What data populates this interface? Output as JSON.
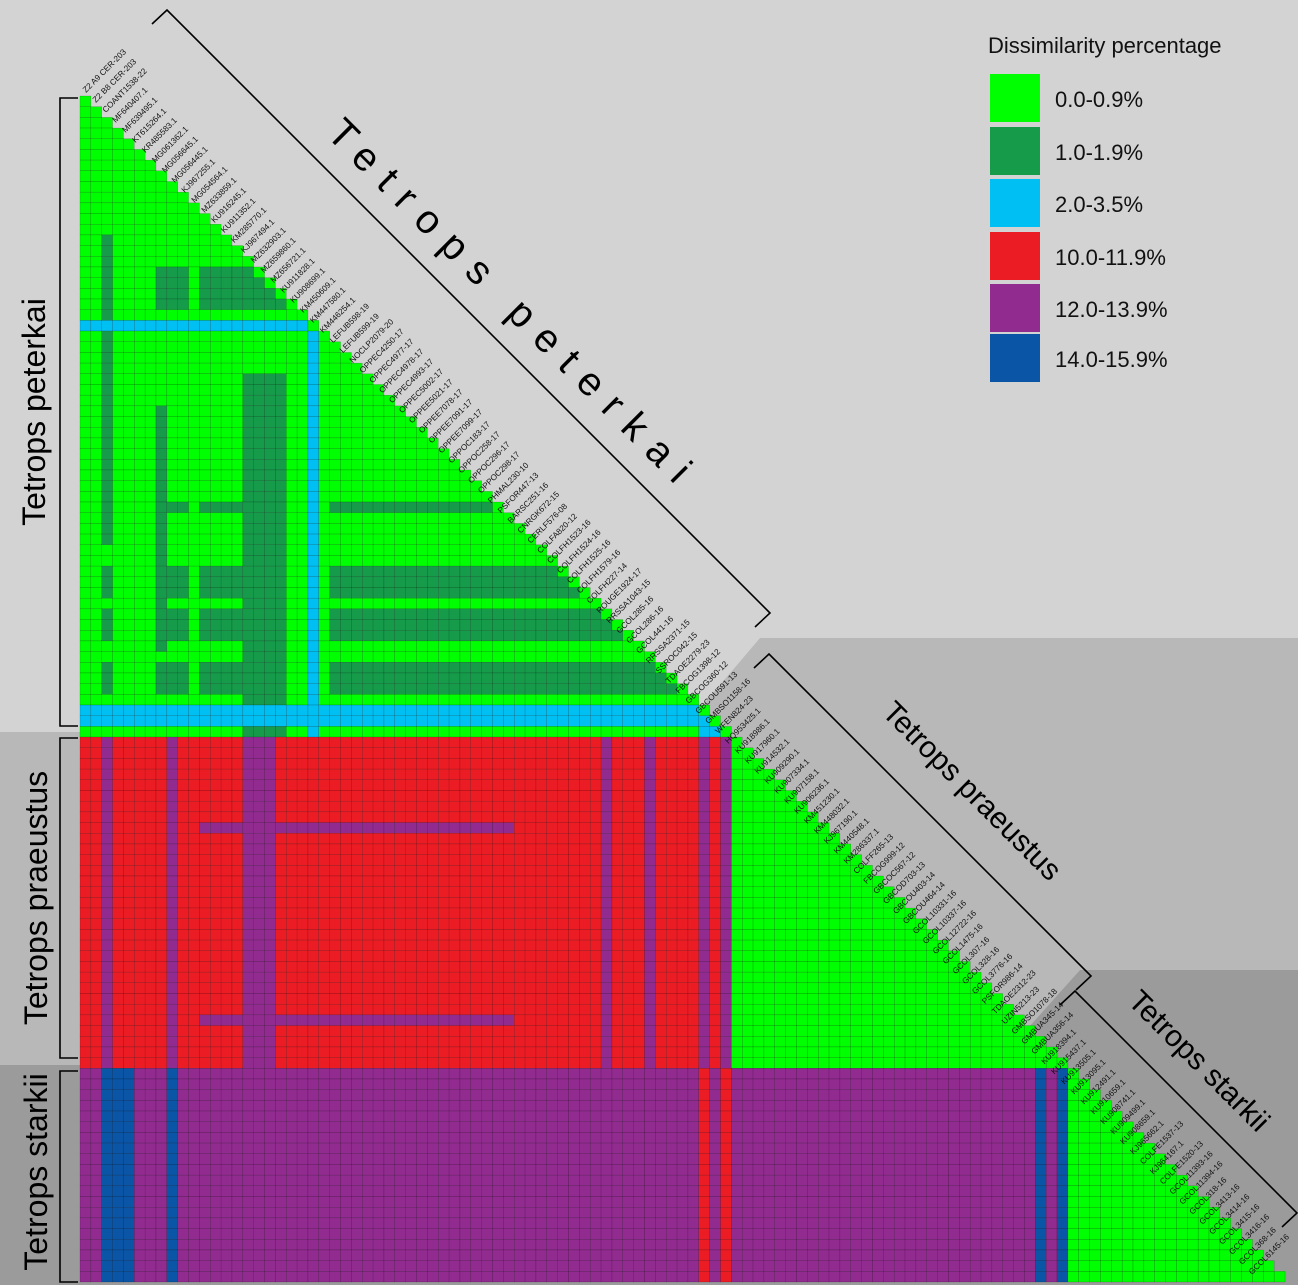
{
  "chart_data": {
    "type": "heatmap",
    "title": "",
    "legend": {
      "title": "Dissimilarity percentage",
      "placement": "top-right",
      "items": [
        {
          "label": "0.0-0.9%",
          "color": "#00ff00"
        },
        {
          "label": "1.0-1.9%",
          "color": "#169b4a"
        },
        {
          "label": "2.0-3.5%",
          "color": "#00bff2"
        },
        {
          "label": "10.0-11.9%",
          "color": "#ec1c24"
        },
        {
          "label": "12.0-13.9%",
          "color": "#922b90"
        },
        {
          "label": "14.0-15.9%",
          "color": "#0a55a6"
        }
      ]
    },
    "groups": [
      {
        "name": "Tetrops peterkai",
        "diagonal_label": "Tetrops peterkai",
        "side_label": "Tetrops peterkai",
        "size": 60
      },
      {
        "name": "Tetrops praeustus",
        "diagonal_label": "Tetrops praeustus",
        "side_label": "Tetrops praeustus",
        "size": 31
      },
      {
        "name": "Tetrops starkii",
        "diagonal_label": "Tetrops starkii",
        "side_label": "Tetrops starkii",
        "size": 20
      }
    ],
    "sequence_labels": [
      "Z2 A9 CER-203",
      "Z2 B8 CER-203",
      "COANT1538-22",
      "MF640407.1",
      "MF639495.1",
      "KT615264.1",
      "KR485583.1",
      "MG061362.1",
      "MG056645.1",
      "MG056445.1",
      "KJ967255.1",
      "MG054564.1",
      "MZ633859.1",
      "KU916245.1",
      "KU911352.1",
      "KM285770.1",
      "KJ967494.1",
      "MZ632903.1",
      "MZ659860.1",
      "MZ656721.1",
      "KU911828.1",
      "KU908699.1",
      "KM450609.1",
      "KM447580.1",
      "KM446254.1",
      "LEFUB598-19",
      "LEFUB599-19",
      "NOCLP2079-20",
      "OPPEC4250-17",
      "OPPEC4977-17",
      "OPPEC4978-17",
      "OPPEC4993-17",
      "OPPEC5002-17",
      "OPPEE5021-17",
      "OPPEE7078-17",
      "OPPEE7091-17",
      "OPPEE7099-17",
      "OPPOC183-17",
      "OPPOC258-17",
      "OPPOC296-17",
      "OPPOC298-17",
      "PHMAL230-10",
      "PSFOR447-13",
      "BARSC251-16",
      "CNRGK672-15",
      "CERLF576-08",
      "COLFA820-12",
      "COLFH1523-16",
      "COLFH1524-16",
      "COLFH1525-16",
      "COLFH1579-16",
      "COLFH227-14",
      "ROUGE1924-17",
      "RRSSA1043-15",
      "GCOL285-16",
      "GCOL286-16",
      "GCOL441-16",
      "RRSSA2371-15",
      "SSROC042-15",
      "TDAOE2279-23",
      "FBCOG1398-12",
      "GBCOG360-12",
      "GBCOU591-13",
      "GMBSO1158-16",
      "WFEN824-23",
      "HQ953425.1",
      "KU918986.1",
      "KU917960.1",
      "KU914532.1",
      "KU909290.1",
      "KU907334.1",
      "KU907158.1",
      "KU906236.1",
      "KM451230.1",
      "KM448032.1",
      "KJ967190.1",
      "KM440548.1",
      "KM286337.1",
      "COLFF265-13",
      "FBCOG999-12",
      "GBCOC567-12",
      "GBCOD703-13",
      "GBCOU403-14",
      "GBCOU464-14",
      "GCOL10331-16",
      "GCOL10337-16",
      "GCOL12722-16",
      "GCOL1475-16",
      "GCOL307-16",
      "GCOL328-16",
      "GCOL3776-16",
      "PSFOR986-14",
      "TDAOE2312-23",
      "UZIN5213-23",
      "GMBSO1078-18",
      "GMBUA345-14",
      "GMBUA356-14",
      "KU918394.1",
      "KU915437.1",
      "KU913505.1",
      "KU913095.1",
      "KU912491.1",
      "KU910659.1",
      "KU908741.1",
      "KU909499.1",
      "KU908659.1",
      "KJ965662.1",
      "COLFE1537-13",
      "KJ964167.1",
      "COLFE1520-13",
      "GCOL11393-16"
    ],
    "extra_labels": [
      "GCOL11394-16",
      "GCOL318-16",
      "GCOL3413-16",
      "GCOL3414-16",
      "GCOL3415-16",
      "GCOL3416-16",
      "GCOL368-16",
      "GCOL6145-16"
    ],
    "blocks": {
      "peterkai_background": "0.0-0.9%",
      "peterkai_bands": "1.0-1.9%",
      "peterkai_outlier_rows": "2.0-3.5%",
      "praeustus_vs_peterkai": "10.0-11.9%",
      "praeustus_vs_peterkai_alt": "12.0-13.9%",
      "praeustus_within": "0.0-0.9%",
      "starkii_vs_peterkai": "12.0-13.9%",
      "starkii_vs_peterkai_alt": "14.0-15.9%",
      "starkii_vs_praeustus": "12.0-13.9%",
      "starkii_within": "0.0-0.9%"
    }
  }
}
